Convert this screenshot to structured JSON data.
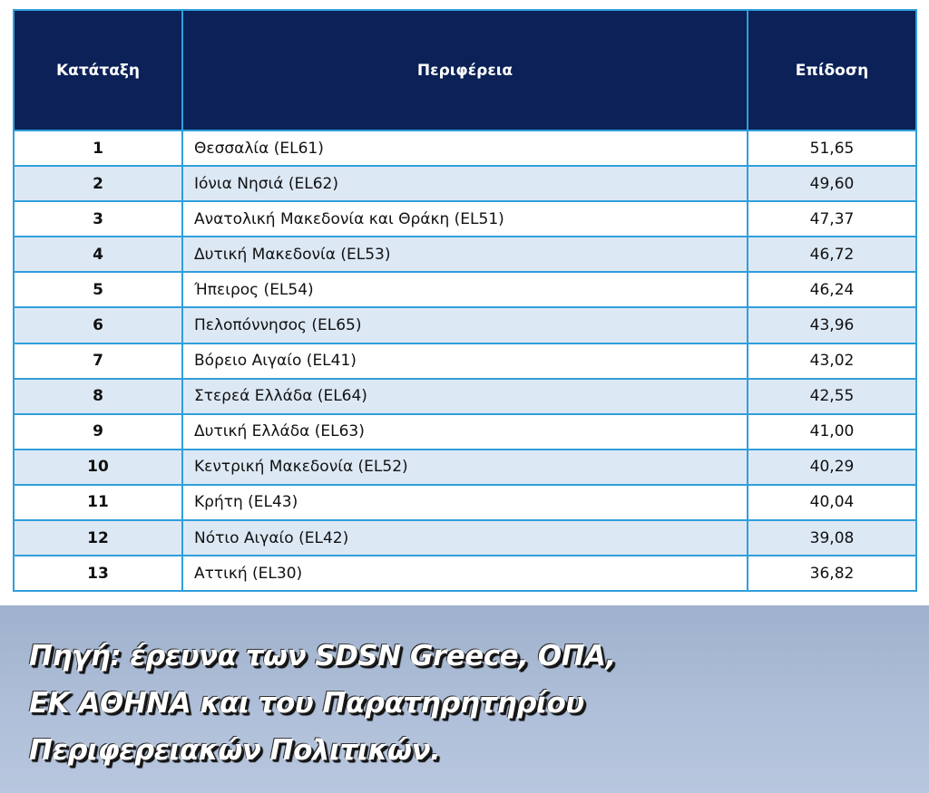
{
  "table": {
    "headers": {
      "rank": "Κατάταξη",
      "region": "Περιφέρεια",
      "score": "Επίδοση"
    },
    "rows": [
      {
        "rank": "1",
        "region": "Θεσσαλία (EL61)",
        "score": "51,65"
      },
      {
        "rank": "2",
        "region": "Ιόνια Νησιά (EL62)",
        "score": "49,60"
      },
      {
        "rank": "3",
        "region": "Ανατολική Μακεδονία και Θράκη (EL51)",
        "score": "47,37"
      },
      {
        "rank": "4",
        "region": "Δυτική Μακεδονία (EL53)",
        "score": "46,72"
      },
      {
        "rank": "5",
        "region": "Ήπειρος (EL54)",
        "score": "46,24"
      },
      {
        "rank": "6",
        "region": "Πελοπόννησος (EL65)",
        "score": "43,96"
      },
      {
        "rank": "7",
        "region": "Βόρειο Αιγαίο (EL41)",
        "score": "43,02"
      },
      {
        "rank": "8",
        "region": "Στερεά Ελλάδα (EL64)",
        "score": "42,55"
      },
      {
        "rank": "9",
        "region": "Δυτική Ελλάδα (EL63)",
        "score": "41,00"
      },
      {
        "rank": "10",
        "region": "Κεντρική Μακεδονία (EL52)",
        "score": "40,29"
      },
      {
        "rank": "11",
        "region": "Κρήτη (EL43)",
        "score": "40,04"
      },
      {
        "rank": "12",
        "region": "Νότιο Αιγαίο (EL42)",
        "score": "39,08"
      },
      {
        "rank": "13",
        "region": "Αττική (EL30)",
        "score": "36,82"
      }
    ]
  },
  "source": {
    "lines": [
      "Πηγή: έρευνα των SDSN Greece, ΟΠΑ,",
      "ΕΚ ΑΘΗΝΑ και του Παρατηρητηρίου",
      "Περιφερειακών Πολιτικών."
    ]
  },
  "colors": {
    "header_bg": "#0b2157",
    "border": "#2f9fdb",
    "stripe": "#dde8f5",
    "band": "#afbfd9"
  }
}
